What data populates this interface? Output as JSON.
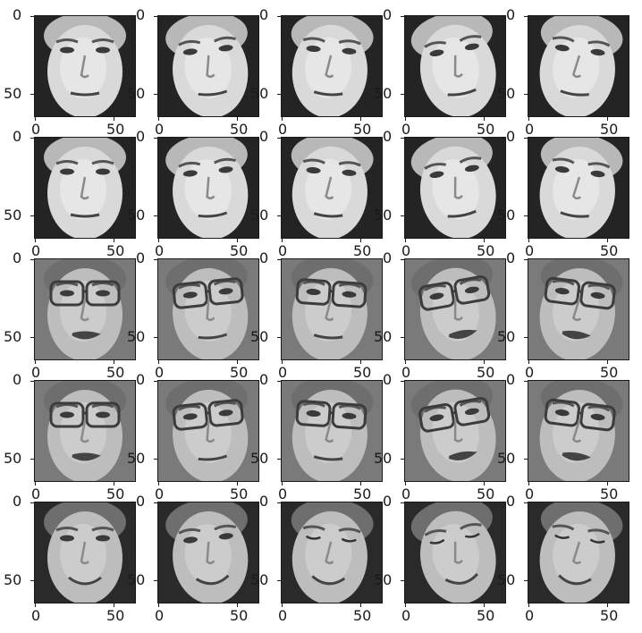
{
  "figure": {
    "rows": 5,
    "cols": 5,
    "tick_labels": {
      "y_top": "0",
      "y_bottom": "50",
      "x_left": "0",
      "x_right": "50"
    },
    "subjects": [
      {
        "row": 0,
        "description": "young man, short hair, dark background",
        "tone": "light",
        "glasses": false,
        "smile": false
      },
      {
        "row": 1,
        "description": "same young man, varied head poses",
        "tone": "light",
        "glasses": false,
        "smile": false
      },
      {
        "row": 2,
        "description": "man with large glasses, grey background",
        "tone": "mid",
        "glasses": true,
        "smile": false
      },
      {
        "row": 3,
        "description": "same man with glasses, different expressions",
        "tone": "mid",
        "glasses": true,
        "smile": false
      },
      {
        "row": 4,
        "description": "smiling man, dark background, looking down",
        "tone": "mid",
        "glasses": false,
        "smile": true
      }
    ]
  }
}
